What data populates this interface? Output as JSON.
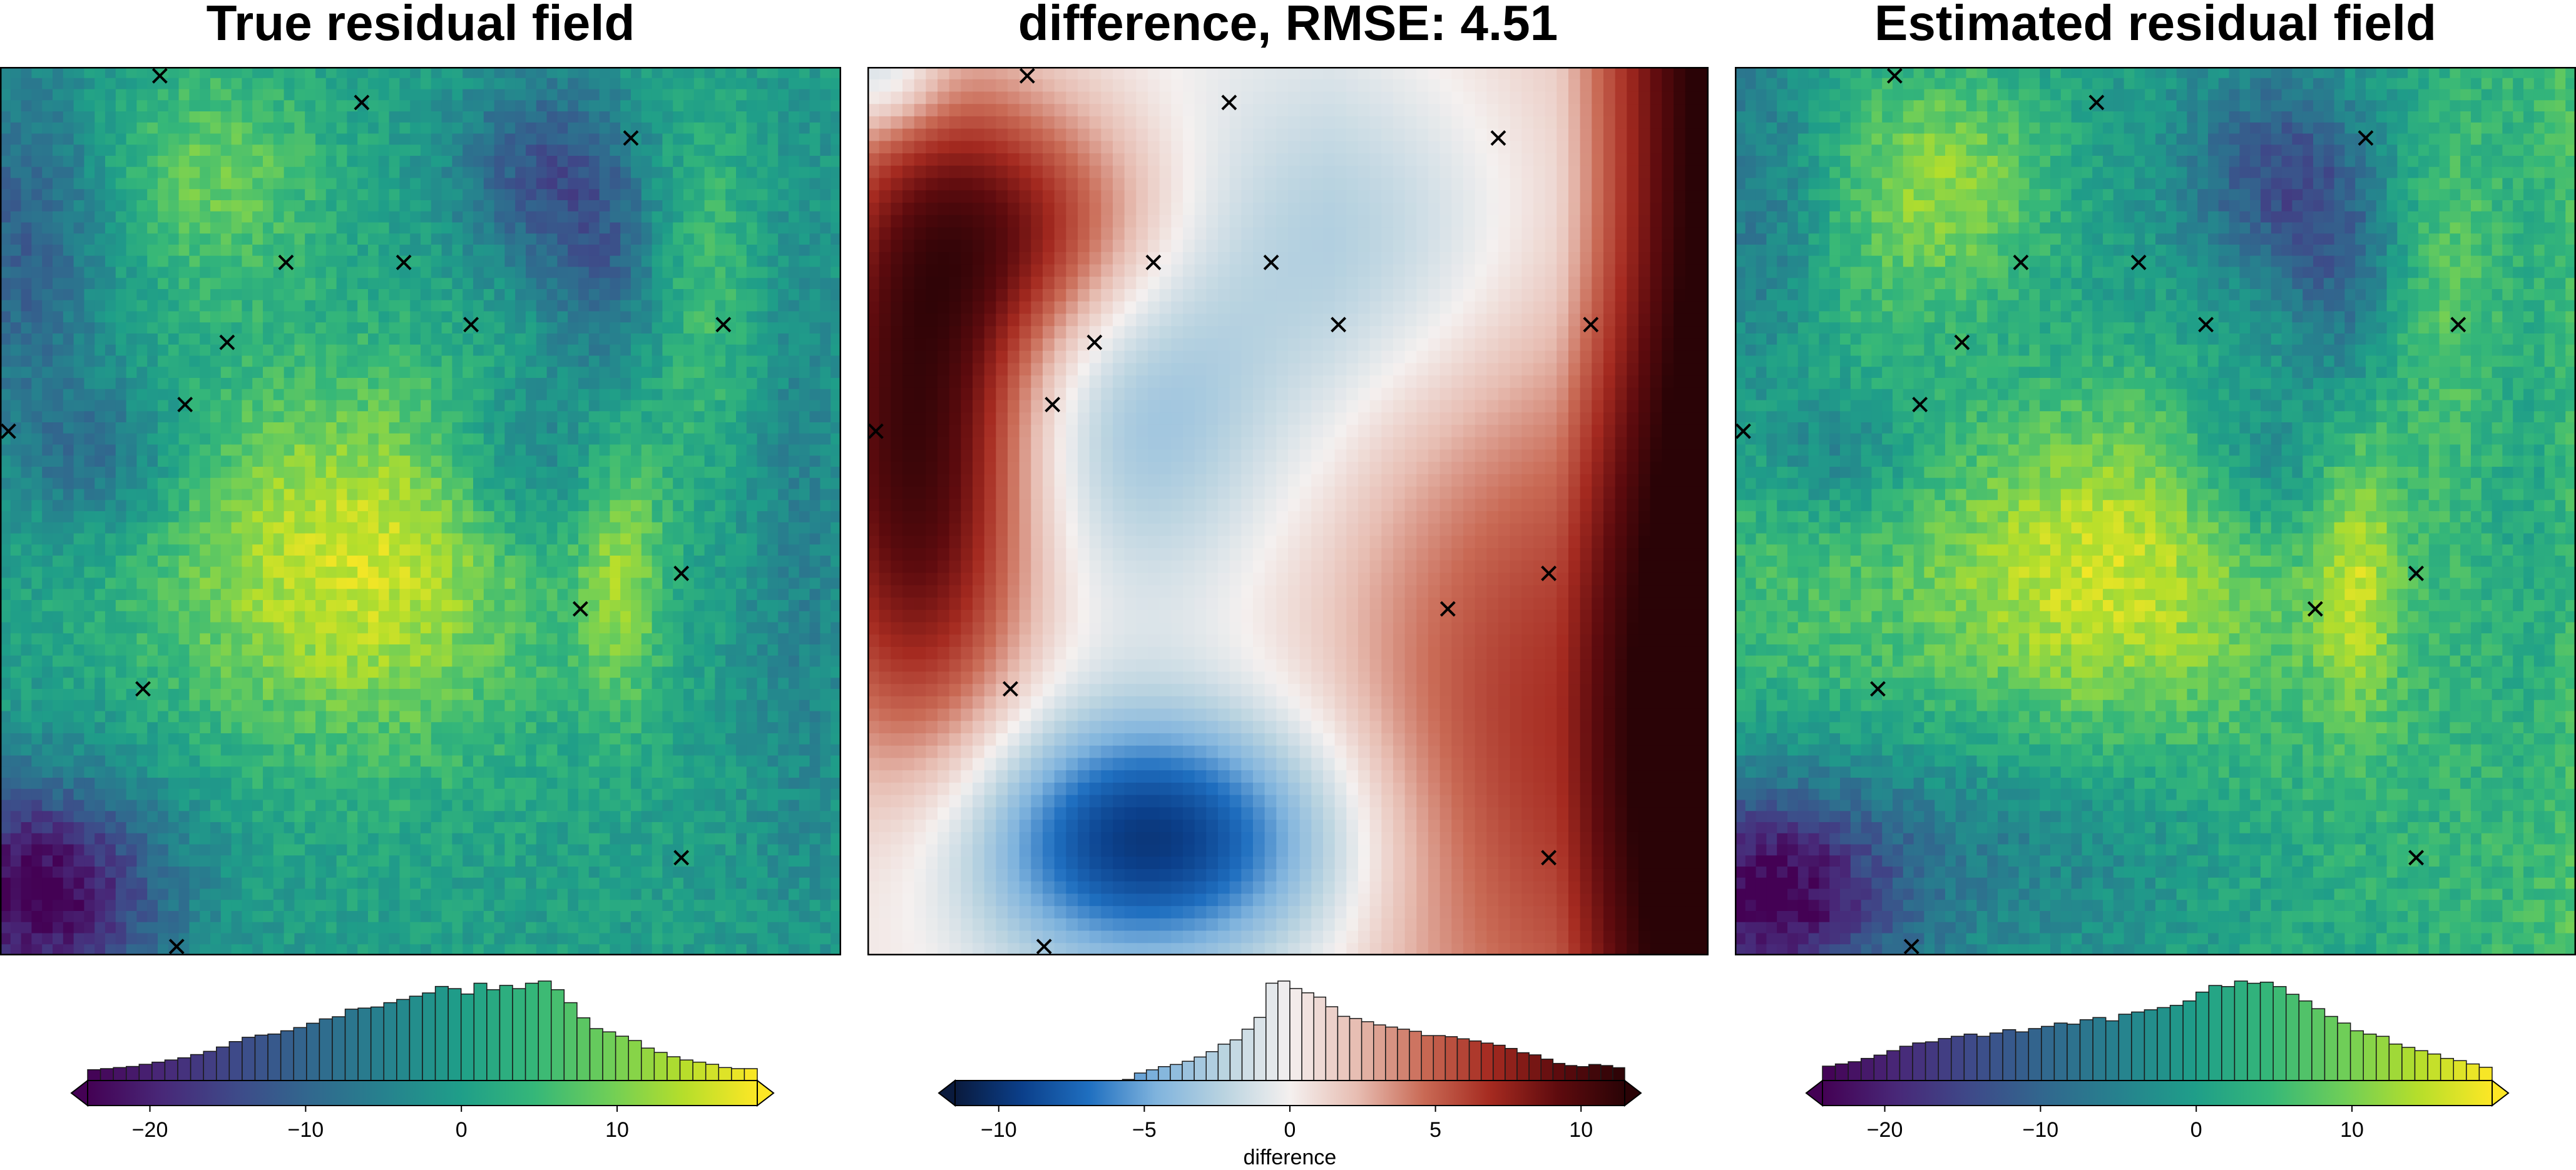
{
  "colors": {
    "frame": "#000000",
    "marker": "#000000",
    "viridis": [
      "#440154",
      "#482878",
      "#3e4a89",
      "#31688e",
      "#26828e",
      "#1f9e89",
      "#35b779",
      "#6ece58",
      "#b5de2b",
      "#fde725"
    ],
    "diverging": [
      "#0a1a3d",
      "#0b3f8a",
      "#1f6fc0",
      "#7fb3dd",
      "#b9d3e0",
      "#f4f0ef",
      "#e7bdb2",
      "#c96a55",
      "#a52a20",
      "#5e0b0e",
      "#2a0306"
    ]
  },
  "chart_data": [
    {
      "type": "heatmap",
      "title": "True residual field",
      "colormap": "viridis",
      "grid": false,
      "value_range": [
        -24,
        19
      ],
      "markers": {
        "symbol": "x",
        "points": [
          [
            19,
            99
          ],
          [
            43,
            96
          ],
          [
            75,
            92
          ],
          [
            34,
            78
          ],
          [
            48,
            78
          ],
          [
            56,
            71
          ],
          [
            86,
            71
          ],
          [
            27,
            69
          ],
          [
            22,
            62
          ],
          [
            1,
            59
          ],
          [
            81,
            43
          ],
          [
            69,
            39
          ],
          [
            17,
            30
          ],
          [
            81,
            11
          ],
          [
            21,
            1
          ]
        ]
      },
      "colorbar": {
        "label": "",
        "range": [
          -24,
          19
        ],
        "ticks": [
          -20,
          -10,
          0,
          10
        ],
        "tick_labels": [
          "−20",
          "−10",
          "0",
          "10"
        ],
        "extend": "both",
        "histogram": [
          10,
          11,
          12,
          13,
          15,
          17,
          19,
          21,
          24,
          27,
          31,
          36,
          40,
          42,
          43,
          46,
          49,
          53,
          57,
          59,
          66,
          67,
          68,
          72,
          75,
          78,
          81,
          87,
          85,
          80,
          90,
          84,
          88,
          85,
          90,
          92,
          84,
          72,
          58,
          48,
          45,
          41,
          37,
          30,
          26,
          22,
          19,
          17,
          15,
          12,
          11,
          11
        ]
      }
    },
    {
      "type": "heatmap",
      "title": "difference, RMSE: 4.51",
      "colormap": "diverging",
      "grid": false,
      "value_range": [
        -11.5,
        11.5
      ],
      "markers": {
        "symbol": "x",
        "points": [
          [
            19,
            99
          ],
          [
            43,
            96
          ],
          [
            75,
            92
          ],
          [
            34,
            78
          ],
          [
            48,
            78
          ],
          [
            56,
            71
          ],
          [
            86,
            71
          ],
          [
            27,
            69
          ],
          [
            22,
            62
          ],
          [
            1,
            59
          ],
          [
            81,
            43
          ],
          [
            69,
            39
          ],
          [
            17,
            30
          ],
          [
            81,
            11
          ],
          [
            21,
            1
          ]
        ]
      },
      "colorbar": {
        "label": "difference",
        "range": [
          -11.5,
          11.5
        ],
        "ticks": [
          -10,
          -5,
          0,
          5,
          10
        ],
        "tick_labels": [
          "−10",
          "−5",
          "0",
          "5",
          "10"
        ],
        "extend": "both",
        "histogram": [
          0,
          0,
          0,
          0,
          0,
          0,
          0,
          0,
          0,
          0,
          0,
          0,
          0,
          0,
          1,
          7,
          10,
          13,
          15,
          18,
          22,
          27,
          34,
          38,
          48,
          59,
          91,
          93,
          86,
          82,
          78,
          69,
          60,
          58,
          55,
          52,
          50,
          48,
          46,
          42,
          42,
          41,
          39,
          37,
          35,
          33,
          30,
          26,
          24,
          20,
          16,
          14,
          13,
          15,
          14,
          12
        ]
      }
    },
    {
      "type": "heatmap",
      "title": "Estimated residual field",
      "colormap": "viridis",
      "grid": false,
      "value_range": [
        -24,
        19
      ],
      "markers": {
        "symbol": "x",
        "points": [
          [
            19,
            99
          ],
          [
            43,
            96
          ],
          [
            75,
            92
          ],
          [
            34,
            78
          ],
          [
            48,
            78
          ],
          [
            56,
            71
          ],
          [
            86,
            71
          ],
          [
            27,
            69
          ],
          [
            22,
            62
          ],
          [
            1,
            59
          ],
          [
            81,
            43
          ],
          [
            69,
            39
          ],
          [
            17,
            30
          ],
          [
            81,
            11
          ],
          [
            21,
            1
          ]
        ]
      },
      "colorbar": {
        "label": "",
        "range": [
          -24,
          19
        ],
        "ticks": [
          -20,
          -10,
          0,
          10
        ],
        "tick_labels": [
          "−20",
          "−10",
          "0",
          "10"
        ],
        "extend": "both",
        "histogram": [
          13,
          15,
          17,
          20,
          23,
          27,
          31,
          34,
          35,
          38,
          40,
          42,
          40,
          43,
          46,
          44,
          47,
          49,
          52,
          51,
          55,
          57,
          54,
          60,
          62,
          64,
          66,
          68,
          72,
          80,
          86,
          85,
          90,
          88,
          89,
          85,
          78,
          72,
          65,
          58,
          52,
          45,
          42,
          40,
          33,
          30,
          27,
          24,
          20,
          18,
          15,
          12
        ]
      }
    }
  ]
}
